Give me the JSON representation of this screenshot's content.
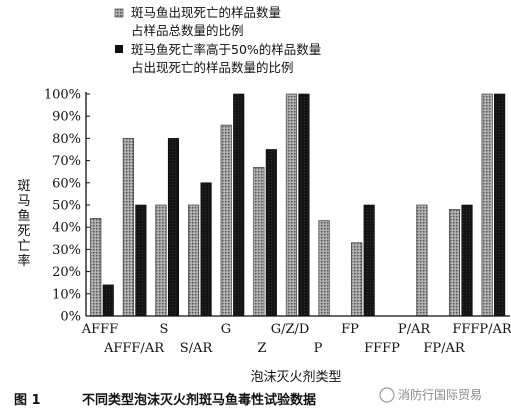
{
  "chart_data": {
    "type": "bar",
    "categories": [
      "AFFF",
      "AFFF/AR",
      "S",
      "S/AR",
      "G",
      "Z",
      "G/Z/D",
      "P",
      "FP",
      "FFFP",
      "P/AR",
      "FP/AR",
      "FFFP/AR"
    ],
    "series": [
      {
        "name": "斑马鱼出现死亡的样品数量\n占样品总数量的比例",
        "pattern": "dotted-gray",
        "values": [
          44,
          80,
          50,
          50,
          86,
          67,
          100,
          43,
          33,
          0,
          50,
          48,
          100
        ]
      },
      {
        "name": "斑马鱼死亡率高于50%的样品数量\n占出现死亡的样品数量的比例",
        "pattern": "solid-black",
        "values": [
          14,
          50,
          80,
          60,
          100,
          75,
          100,
          0,
          50,
          0,
          0,
          50,
          100
        ]
      }
    ],
    "xlabel": "泡沫灭火剂类型",
    "ylabel": "斑马鱼死亡率",
    "ylim": [
      0,
      100
    ],
    "yticks": [
      "0%",
      "10%",
      "20%",
      "30%",
      "40%",
      "50%",
      "60%",
      "70%",
      "80%",
      "90%",
      "100%"
    ],
    "grid": false,
    "legend_position": "top-center"
  },
  "caption": {
    "label": "图 1",
    "text": "不同类型泡沫灭火剂斑马鱼毒性试验数据"
  },
  "watermark": {
    "text": "消防行国际贸易"
  },
  "colors": {
    "dark_bar": "#111111",
    "dotted_bar_base": "#9a9a9a",
    "axis": "#111111"
  }
}
